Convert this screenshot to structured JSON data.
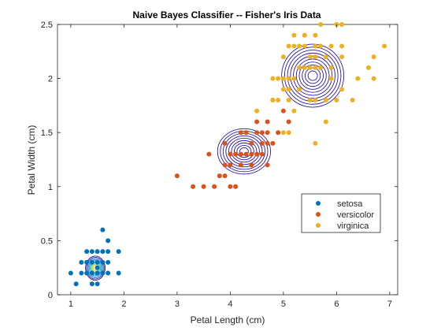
{
  "chart_data": {
    "type": "scatter",
    "title": "Naive Bayes Classifier -- Fisher's Iris Data",
    "xlabel": "Petal Length (cm)",
    "ylabel": "Petal Width (cm)",
    "xlim": [
      0.75,
      7.15
    ],
    "ylim": [
      0,
      2.5
    ],
    "xticks": [
      1,
      2,
      3,
      4,
      5,
      6,
      7
    ],
    "yticks": [
      0,
      0.5,
      1,
      1.5,
      2,
      2.5
    ],
    "xtick_labels": [
      "1",
      "2",
      "3",
      "4",
      "5",
      "6",
      "7"
    ],
    "ytick_labels": [
      "0",
      "0.5",
      "1",
      "1.5",
      "2",
      "2.5"
    ],
    "grid": false,
    "legend_position": "right-middle",
    "series": [
      {
        "name": "setosa",
        "color": "#0072BD",
        "points": [
          [
            1.0,
            0.2
          ],
          [
            1.1,
            0.1
          ],
          [
            1.2,
            0.2
          ],
          [
            1.3,
            0.2
          ],
          [
            1.3,
            0.3
          ],
          [
            1.3,
            0.4
          ],
          [
            1.4,
            0.1
          ],
          [
            1.4,
            0.2
          ],
          [
            1.4,
            0.3
          ],
          [
            1.5,
            0.1
          ],
          [
            1.5,
            0.2
          ],
          [
            1.5,
            0.3
          ],
          [
            1.5,
            0.4
          ],
          [
            1.6,
            0.2
          ],
          [
            1.6,
            0.4
          ],
          [
            1.6,
            0.6
          ],
          [
            1.7,
            0.2
          ],
          [
            1.7,
            0.3
          ],
          [
            1.7,
            0.4
          ],
          [
            1.7,
            0.5
          ],
          [
            1.9,
            0.2
          ],
          [
            1.9,
            0.4
          ],
          [
            1.6,
            0.3
          ],
          [
            1.2,
            0.3
          ],
          [
            1.4,
            0.4
          ],
          [
            1.5,
            0.25
          ]
        ]
      },
      {
        "name": "versicolor",
        "color": "#D95319",
        "points": [
          [
            3.0,
            1.1
          ],
          [
            3.3,
            1.0
          ],
          [
            3.5,
            1.0
          ],
          [
            3.6,
            1.3
          ],
          [
            3.7,
            1.0
          ],
          [
            3.8,
            1.1
          ],
          [
            3.9,
            1.1
          ],
          [
            3.9,
            1.2
          ],
          [
            3.9,
            1.4
          ],
          [
            4.0,
            1.0
          ],
          [
            4.0,
            1.2
          ],
          [
            4.0,
            1.3
          ],
          [
            4.1,
            1.0
          ],
          [
            4.1,
            1.3
          ],
          [
            4.2,
            1.2
          ],
          [
            4.2,
            1.3
          ],
          [
            4.2,
            1.5
          ],
          [
            4.3,
            1.3
          ],
          [
            4.4,
            1.2
          ],
          [
            4.4,
            1.3
          ],
          [
            4.4,
            1.4
          ],
          [
            4.5,
            1.3
          ],
          [
            4.5,
            1.5
          ],
          [
            4.5,
            1.6
          ],
          [
            4.6,
            1.3
          ],
          [
            4.6,
            1.4
          ],
          [
            4.6,
            1.5
          ],
          [
            4.7,
            1.2
          ],
          [
            4.7,
            1.4
          ],
          [
            4.7,
            1.5
          ],
          [
            4.7,
            1.6
          ],
          [
            4.8,
            1.4
          ],
          [
            4.8,
            1.8
          ],
          [
            4.9,
            1.5
          ],
          [
            5.0,
            1.7
          ],
          [
            5.1,
            1.6
          ],
          [
            4.3,
            1.5
          ]
        ]
      },
      {
        "name": "virginica",
        "color": "#EDB120",
        "points": [
          [
            4.5,
            1.7
          ],
          [
            4.8,
            1.8
          ],
          [
            4.9,
            1.8
          ],
          [
            5.0,
            1.5
          ],
          [
            5.0,
            1.9
          ],
          [
            5.0,
            2.0
          ],
          [
            5.1,
            1.5
          ],
          [
            5.1,
            1.8
          ],
          [
            5.1,
            1.9
          ],
          [
            5.1,
            2.0
          ],
          [
            5.1,
            2.3
          ],
          [
            5.2,
            2.0
          ],
          [
            5.2,
            2.3
          ],
          [
            5.3,
            1.9
          ],
          [
            5.3,
            2.3
          ],
          [
            5.4,
            2.1
          ],
          [
            5.4,
            2.3
          ],
          [
            5.5,
            1.8
          ],
          [
            5.5,
            2.1
          ],
          [
            5.6,
            1.4
          ],
          [
            5.6,
            1.8
          ],
          [
            5.6,
            2.1
          ],
          [
            5.6,
            2.2
          ],
          [
            5.6,
            2.4
          ],
          [
            5.7,
            2.1
          ],
          [
            5.7,
            2.3
          ],
          [
            5.7,
            2.5
          ],
          [
            5.8,
            1.6
          ],
          [
            5.8,
            1.8
          ],
          [
            5.8,
            2.2
          ],
          [
            5.9,
            2.1
          ],
          [
            5.9,
            2.3
          ],
          [
            6.0,
            1.8
          ],
          [
            6.0,
            2.5
          ],
          [
            6.1,
            1.9
          ],
          [
            6.1,
            2.3
          ],
          [
            6.1,
            2.5
          ],
          [
            6.3,
            1.8
          ],
          [
            6.4,
            2.0
          ],
          [
            6.6,
            2.1
          ],
          [
            6.7,
            2.0
          ],
          [
            6.7,
            2.2
          ],
          [
            6.9,
            2.3
          ],
          [
            5.2,
            2.4
          ],
          [
            5.5,
            2.2
          ],
          [
            5.4,
            2.4
          ],
          [
            4.9,
            2.0
          ],
          [
            5.3,
            2.1
          ],
          [
            5.9,
            2.0
          ],
          [
            6.1,
            2.2
          ],
          [
            5.2,
            1.7
          ],
          [
            5.0,
            2.2
          ],
          [
            4.8,
            2.0
          ],
          [
            5.6,
            2.3
          ]
        ]
      }
    ],
    "contours": [
      {
        "class": "setosa",
        "center": [
          1.462,
          0.246
        ],
        "radii": [
          0.174,
          0.105
        ],
        "levels": 10,
        "colors": [
          "#41157A",
          "#3E3DA8",
          "#3367D2",
          "#1F8AD9",
          "#1CA3C4",
          "#2CB6A3",
          "#55C07D",
          "#8ECB58",
          "#C9CE3A",
          "#F8E11F"
        ]
      },
      {
        "class": "versicolor",
        "center": [
          4.26,
          1.326
        ],
        "radii": [
          0.47,
          0.198
        ],
        "levels": 9,
        "colors": [
          "#2B19A8"
        ]
      },
      {
        "class": "virginica",
        "center": [
          5.552,
          2.026
        ],
        "radii": [
          0.552,
          0.275
        ],
        "levels": 10,
        "colors": [
          "#2B19A8"
        ]
      }
    ]
  }
}
